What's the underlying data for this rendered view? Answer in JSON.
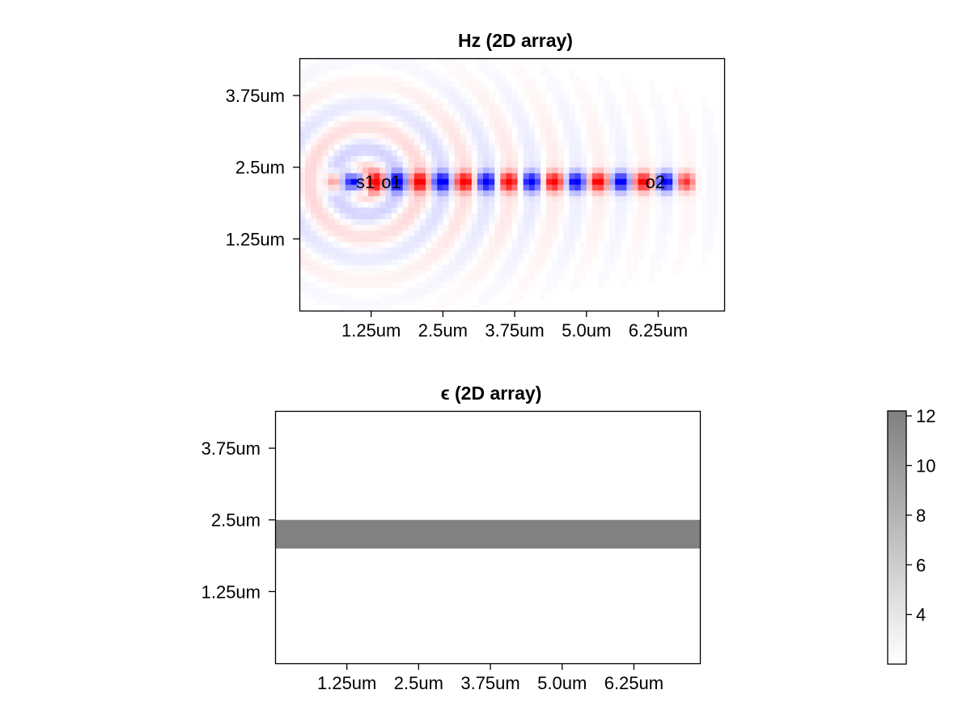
{
  "chart_data": [
    {
      "type": "heatmap",
      "title": "Hz (2D array)",
      "field": "Hz",
      "x_range_um": [
        0,
        7.4
      ],
      "y_range_um": [
        0,
        4.4
      ],
      "x_ticks": [
        {
          "value": 1.25,
          "label": "1.25um"
        },
        {
          "value": 2.5,
          "label": "2.5um"
        },
        {
          "value": 3.75,
          "label": "3.75um"
        },
        {
          "value": 5.0,
          "label": "5.0um"
        },
        {
          "value": 6.25,
          "label": "6.25um"
        }
      ],
      "y_ticks": [
        {
          "value": 1.25,
          "label": "1.25um"
        },
        {
          "value": 2.5,
          "label": "2.5um"
        },
        {
          "value": 3.75,
          "label": "3.75um"
        }
      ],
      "colormap": {
        "negative": "#0000ff",
        "zero": "#ffffff",
        "positive": "#ff0000"
      },
      "waveguide_center_y_um": 2.25,
      "waveguide_x_extent_um": [
        0.35,
        7.05
      ],
      "field_pattern": {
        "wavelength_um": 0.78,
        "source_x_um": 1.15,
        "grid_cell_um": 0.1
      },
      "annotations": [
        {
          "text": "s1",
          "x": 1.15,
          "y": 2.25
        },
        {
          "text": "o1",
          "x": 1.6,
          "y": 2.25
        },
        {
          "text": "o2",
          "x": 6.2,
          "y": 2.25
        }
      ]
    },
    {
      "type": "heatmap",
      "title": "ϵ (2D array)",
      "field": "epsilon",
      "x_range_um": [
        0,
        7.4
      ],
      "y_range_um": [
        0,
        4.4
      ],
      "x_ticks": [
        {
          "value": 1.25,
          "label": "1.25um"
        },
        {
          "value": 2.5,
          "label": "2.5um"
        },
        {
          "value": 3.75,
          "label": "3.75um"
        },
        {
          "value": 5.0,
          "label": "5.0um"
        },
        {
          "value": 6.25,
          "label": "6.25um"
        }
      ],
      "y_ticks": [
        {
          "value": 1.25,
          "label": "1.25um"
        },
        {
          "value": 2.5,
          "label": "2.5um"
        },
        {
          "value": 3.75,
          "label": "3.75um"
        }
      ],
      "background_value": 2.1,
      "waveguide": {
        "y_min_um": 2.0,
        "y_max_um": 2.5,
        "value": 12.1
      },
      "colorbar": {
        "range": [
          2.0,
          12.2
        ],
        "ticks": [
          {
            "value": 4,
            "label": "4"
          },
          {
            "value": 6,
            "label": "6"
          },
          {
            "value": 8,
            "label": "8"
          },
          {
            "value": 10,
            "label": "10"
          },
          {
            "value": 12,
            "label": "12"
          }
        ],
        "color_low": "#ffffff",
        "color_high": "#808080"
      }
    }
  ]
}
